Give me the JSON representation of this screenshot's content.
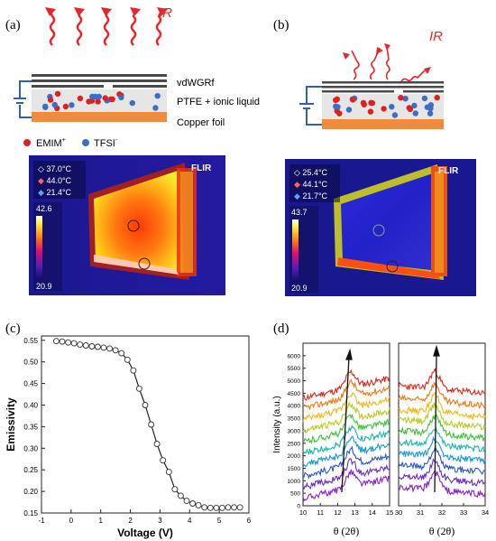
{
  "figure": {
    "panel_a": {
      "label": "(a)",
      "ir_label": "IR",
      "layers": {
        "top": "vdWGRf",
        "middle": "PTFE + ionic liquid",
        "bottom": "Copper foil"
      },
      "legend": {
        "cation": "EMIM",
        "cation_sup": "+",
        "anion": "TFSI",
        "anion_sup": "-"
      },
      "thermal": {
        "readings": [
          "37.0°C",
          "44.0°C",
          "21.4°C"
        ],
        "scale_max": "42.6",
        "scale_min": "20.9",
        "brand": "FLIR"
      }
    },
    "panel_b": {
      "label": "(b)",
      "ir_label": "IR",
      "thermal": {
        "readings": [
          "25.4°C",
          "44.1°C",
          "21.7°C"
        ],
        "scale_max": "43.7",
        "scale_min": "20.9",
        "brand": "FLIR"
      }
    },
    "panel_c": {
      "label": "(c)"
    },
    "panel_d": {
      "label": "(d)"
    },
    "colors": {
      "cation": "#e02020",
      "anion": "#3a6fc4",
      "copper": "#f08a3c",
      "electrode": "#4a4a4a",
      "wire": "#3060b0",
      "ir_wave": "#e8262a"
    }
  },
  "chart_data": [
    {
      "type": "line",
      "panel": "(c)",
      "xlabel": "Voltage (V)",
      "ylabel": "Emissivity",
      "xlim": [
        -1,
        6
      ],
      "ylim": [
        0.15,
        0.56
      ],
      "xticks": [
        "-1",
        "0",
        "1",
        "2",
        "3",
        "4",
        "5",
        "6"
      ],
      "yticks": [
        "0.15",
        "0.20",
        "0.25",
        "0.30",
        "0.35",
        "0.40",
        "0.45",
        "0.50",
        "0.55"
      ],
      "grid": false,
      "markers": "open-circle",
      "x": [
        -0.5,
        -0.3,
        -0.1,
        0.1,
        0.3,
        0.5,
        0.7,
        0.9,
        1.1,
        1.3,
        1.5,
        1.7,
        1.9,
        2.1,
        2.3,
        2.5,
        2.7,
        2.9,
        3.1,
        3.3,
        3.5,
        3.7,
        3.9,
        4.1,
        4.3,
        4.5,
        4.7,
        4.9,
        5.1,
        5.3,
        5.5,
        5.7
      ],
      "y": [
        0.548,
        0.547,
        0.545,
        0.543,
        0.54,
        0.538,
        0.536,
        0.535,
        0.533,
        0.531,
        0.527,
        0.52,
        0.505,
        0.48,
        0.438,
        0.4,
        0.355,
        0.31,
        0.272,
        0.245,
        0.205,
        0.19,
        0.178,
        0.172,
        0.168,
        0.163,
        0.162,
        0.162,
        0.162,
        0.163,
        0.163,
        0.163
      ]
    },
    {
      "type": "line",
      "panel": "(d)",
      "ylabel": "Intensity (a.u.)",
      "xlabel_left": "θ (2θ)",
      "xlabel_right": "θ (2θ)",
      "ylim": [
        0,
        6500
      ],
      "yticks": [
        "0",
        "500",
        "1000",
        "1500",
        "2000",
        "2500",
        "3000",
        "3500",
        "4000",
        "4500",
        "5000",
        "5500",
        "6000"
      ],
      "left_xlim": [
        10,
        15
      ],
      "left_xticks": [
        "10",
        "11",
        "12",
        "13",
        "14",
        "15"
      ],
      "right_xlim": [
        30,
        34
      ],
      "right_xticks": [
        "30",
        "31",
        "32",
        "33",
        "34"
      ],
      "series_colors": [
        "#e2261c",
        "#f07a16",
        "#f2b81a",
        "#b8cc1a",
        "#3ec23a",
        "#17b8a8",
        "#1a96d8",
        "#2a55cc",
        "#6a2ccc",
        "#8a20c8"
      ],
      "left_offsets": [
        4700,
        4300,
        3850,
        3400,
        2950,
        2500,
        2050,
        1600,
        1150,
        700
      ],
      "right_offsets": [
        4650,
        4150,
        3700,
        3300,
        2850,
        2400,
        1950,
        1500,
        1050,
        600
      ]
    }
  ]
}
